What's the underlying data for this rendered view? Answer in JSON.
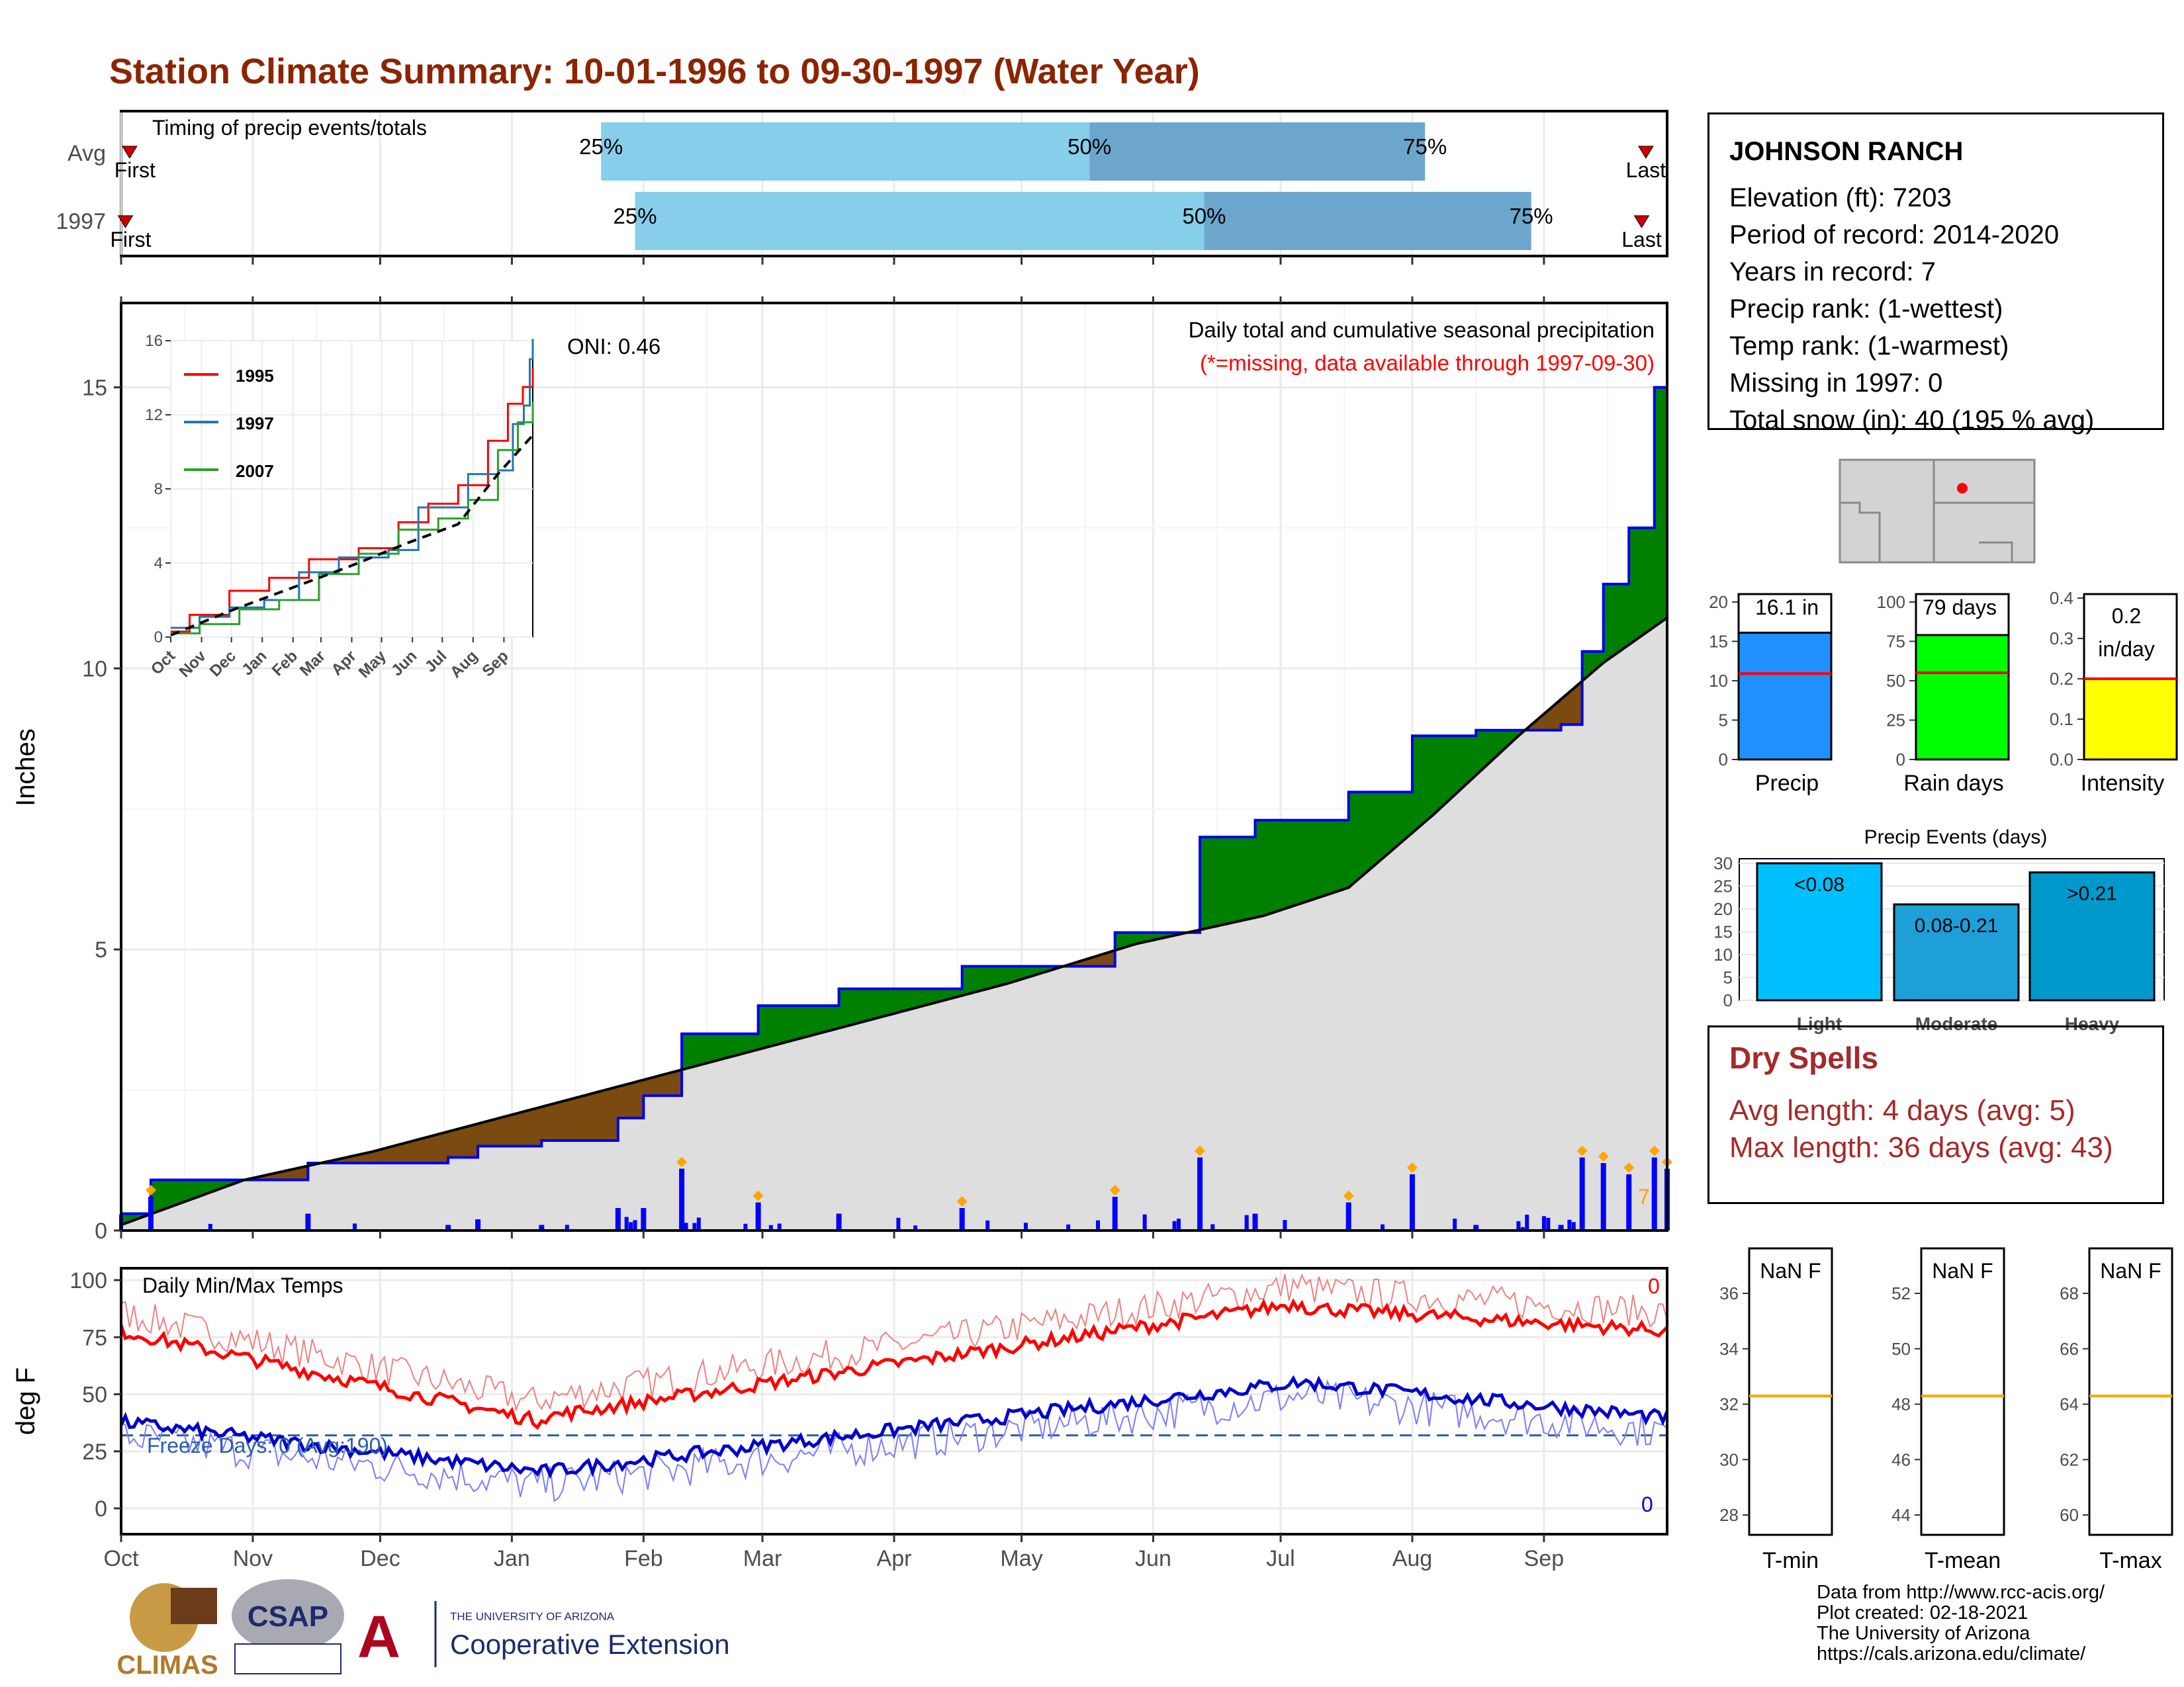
{
  "title": "Station Climate Summary: 10-01-1996 to 09-30-1997 (Water Year)",
  "colors": {
    "title": "#8b2500",
    "green": "#008000",
    "brown": "#7a4a10",
    "blue": "#0000ee",
    "red": "#ff0000",
    "lightblue": "#87ceeb",
    "midblue": "#6ca6cd",
    "gray": "#dedede",
    "orange": "#ffa500",
    "dryspell": "#a52a2a"
  },
  "timing": {
    "panel_label": "Timing of precip events/totals",
    "rows": [
      "Avg",
      "1997"
    ],
    "first_label": "First",
    "last_label": "Last",
    "q25": "25%",
    "q50": "50%",
    "q75": "75%",
    "avg": {
      "q25": 114,
      "q50": 229,
      "q75": 308,
      "first": 3,
      "last": 360
    },
    "year": {
      "q25": 122,
      "q50": 256,
      "q75": 333,
      "first": 2,
      "last": 359
    }
  },
  "main": {
    "ylabel": "Inches",
    "oni": "ONI: 0.46",
    "note1": "Daily total and cumulative seasonal precipitation",
    "note2": "(*=missing, data available through 1997-09-30)",
    "yticks": [
      0,
      5,
      10,
      15
    ],
    "months": [
      "Oct",
      "Nov",
      "Dec",
      "Jan",
      "Feb",
      "Mar",
      "Apr",
      "May",
      "Jun",
      "Jul",
      "Aug",
      "Sep"
    ],
    "max_day_label": "7"
  },
  "inset": {
    "legend": [
      "1995",
      "1997",
      "2007"
    ],
    "yticks": [
      "0",
      "4",
      "8",
      "12",
      "16"
    ],
    "months": [
      "Oct",
      "Nov",
      "Dec",
      "Jan",
      "Feb",
      "Mar",
      "Apr",
      "May",
      "Jun",
      "Jul",
      "Aug",
      "Sep"
    ]
  },
  "temp": {
    "ylabel": "deg F",
    "panel_label": "Daily Min/Max Temps",
    "freeze_label": "Freeze Days: 0 (Avg:190)",
    "max_count": "0",
    "min_count": "0",
    "yticks": [
      "0",
      "25",
      "50",
      "75",
      "100"
    ]
  },
  "station": {
    "name": "JOHNSON RANCH",
    "elevation": "Elevation (ft): 7203",
    "period": "Period of record: 2014-2020",
    "years": "Years in record: 7",
    "precip_rank": "Precip rank:  (1-wettest)",
    "temp_rank": "Temp rank:  (1-warmest)",
    "missing": "Missing in 1997: 0",
    "snow": "Total snow (in): 40 (195 % avg)"
  },
  "bars": {
    "precip": {
      "label": "Precip",
      "value_label": "16.1 in",
      "value": 16.1,
      "avg": 10.9,
      "max": 21,
      "ticks": [
        "0",
        "5",
        "10",
        "15",
        "20"
      ]
    },
    "rain": {
      "label": "Rain days",
      "value_label": "79 days",
      "value": 79,
      "avg": 55,
      "max": 105,
      "ticks": [
        "0",
        "25",
        "50",
        "75",
        "100"
      ]
    },
    "intensity": {
      "label": "Intensity",
      "value_label_1": "0.2",
      "value_label_2": "in/day",
      "value": 0.2,
      "avg": 0.2,
      "max": 0.41,
      "ticks": [
        "0.0",
        "0.1",
        "0.2",
        "0.3",
        "0.4"
      ]
    }
  },
  "events": {
    "title": "Precip Events (days)",
    "ticks": [
      "0",
      "5",
      "10",
      "15",
      "20",
      "25",
      "30"
    ],
    "categories": [
      "Light",
      "Moderate",
      "Heavy"
    ],
    "labels": [
      "<0.08",
      "0.08-0.21",
      ">0.21"
    ],
    "values": [
      30,
      21,
      28
    ]
  },
  "dry": {
    "title": "Dry Spells",
    "avg": "Avg length: 4 days (avg: 5)",
    "max": "Max length: 36 days (avg: 43)"
  },
  "tempbox": {
    "tmin": {
      "label": "T-min",
      "value": "NaN F",
      "ticks": [
        "28",
        "30",
        "32",
        "34",
        "36"
      ],
      "avg": 32.3
    },
    "tmean": {
      "label": "T-mean",
      "value": "NaN F",
      "ticks": [
        "44",
        "46",
        "48",
        "50",
        "52"
      ],
      "avg": 48.3
    },
    "tmax": {
      "label": "T-max",
      "value": "NaN F",
      "ticks": [
        "60",
        "62",
        "64",
        "66",
        "68"
      ],
      "avg": 64.3
    }
  },
  "footer": {
    "line1": "Data from http://www.rcc-acis.org/",
    "line2": "Plot created: 02-18-2021",
    "line3": "The University of Arizona",
    "line4": "https://cals.arizona.edu/climate/"
  },
  "logos": {
    "climas": "CLIMAS",
    "csap": "CSAP",
    "ua_small": "THE UNIVERSITY OF ARIZONA",
    "ua_big": "Cooperative Extension"
  },
  "chart_data": {
    "type": "area",
    "x_unit": "day of water year (1 = Oct 1)",
    "y_unit": "inches",
    "series": [
      {
        "name": "1997",
        "x": [
          1,
          8,
          13,
          45,
          55,
          78,
          85,
          96,
          100,
          111,
          118,
          124,
          130,
          133,
          151,
          170,
          179,
          199,
          222,
          235,
          255,
          265,
          268,
          275,
          290,
          305,
          320,
          330,
          340,
          345,
          350,
          356,
          362,
          365
        ],
        "y": [
          0.3,
          0.9,
          0.9,
          1.2,
          1.2,
          1.3,
          1.5,
          1.5,
          1.6,
          1.6,
          2.0,
          2.4,
          2.4,
          3.5,
          4.0,
          4.3,
          4.3,
          4.7,
          4.7,
          5.3,
          7.0,
          7.0,
          7.3,
          7.3,
          7.8,
          8.8,
          8.9,
          8.9,
          9.0,
          10.3,
          11.5,
          12.5,
          15.0,
          16.1
        ]
      },
      {
        "x": [
          1,
          30,
          60,
          90,
          120,
          150,
          180,
          210,
          240,
          270,
          290,
          310,
          330,
          350,
          365
        ],
        "y": [
          0.1,
          0.9,
          1.4,
          2.0,
          2.6,
          3.2,
          3.8,
          4.4,
          5.1,
          5.6,
          6.1,
          7.4,
          8.8,
          10.1,
          10.9
        ]
      }
    ],
    "temp_max_range": [
      35,
      90
    ],
    "temp_min_range": [
      14,
      57
    ],
    "freeze_line_f": 32,
    "ylim": [
      0,
      16.5
    ]
  }
}
